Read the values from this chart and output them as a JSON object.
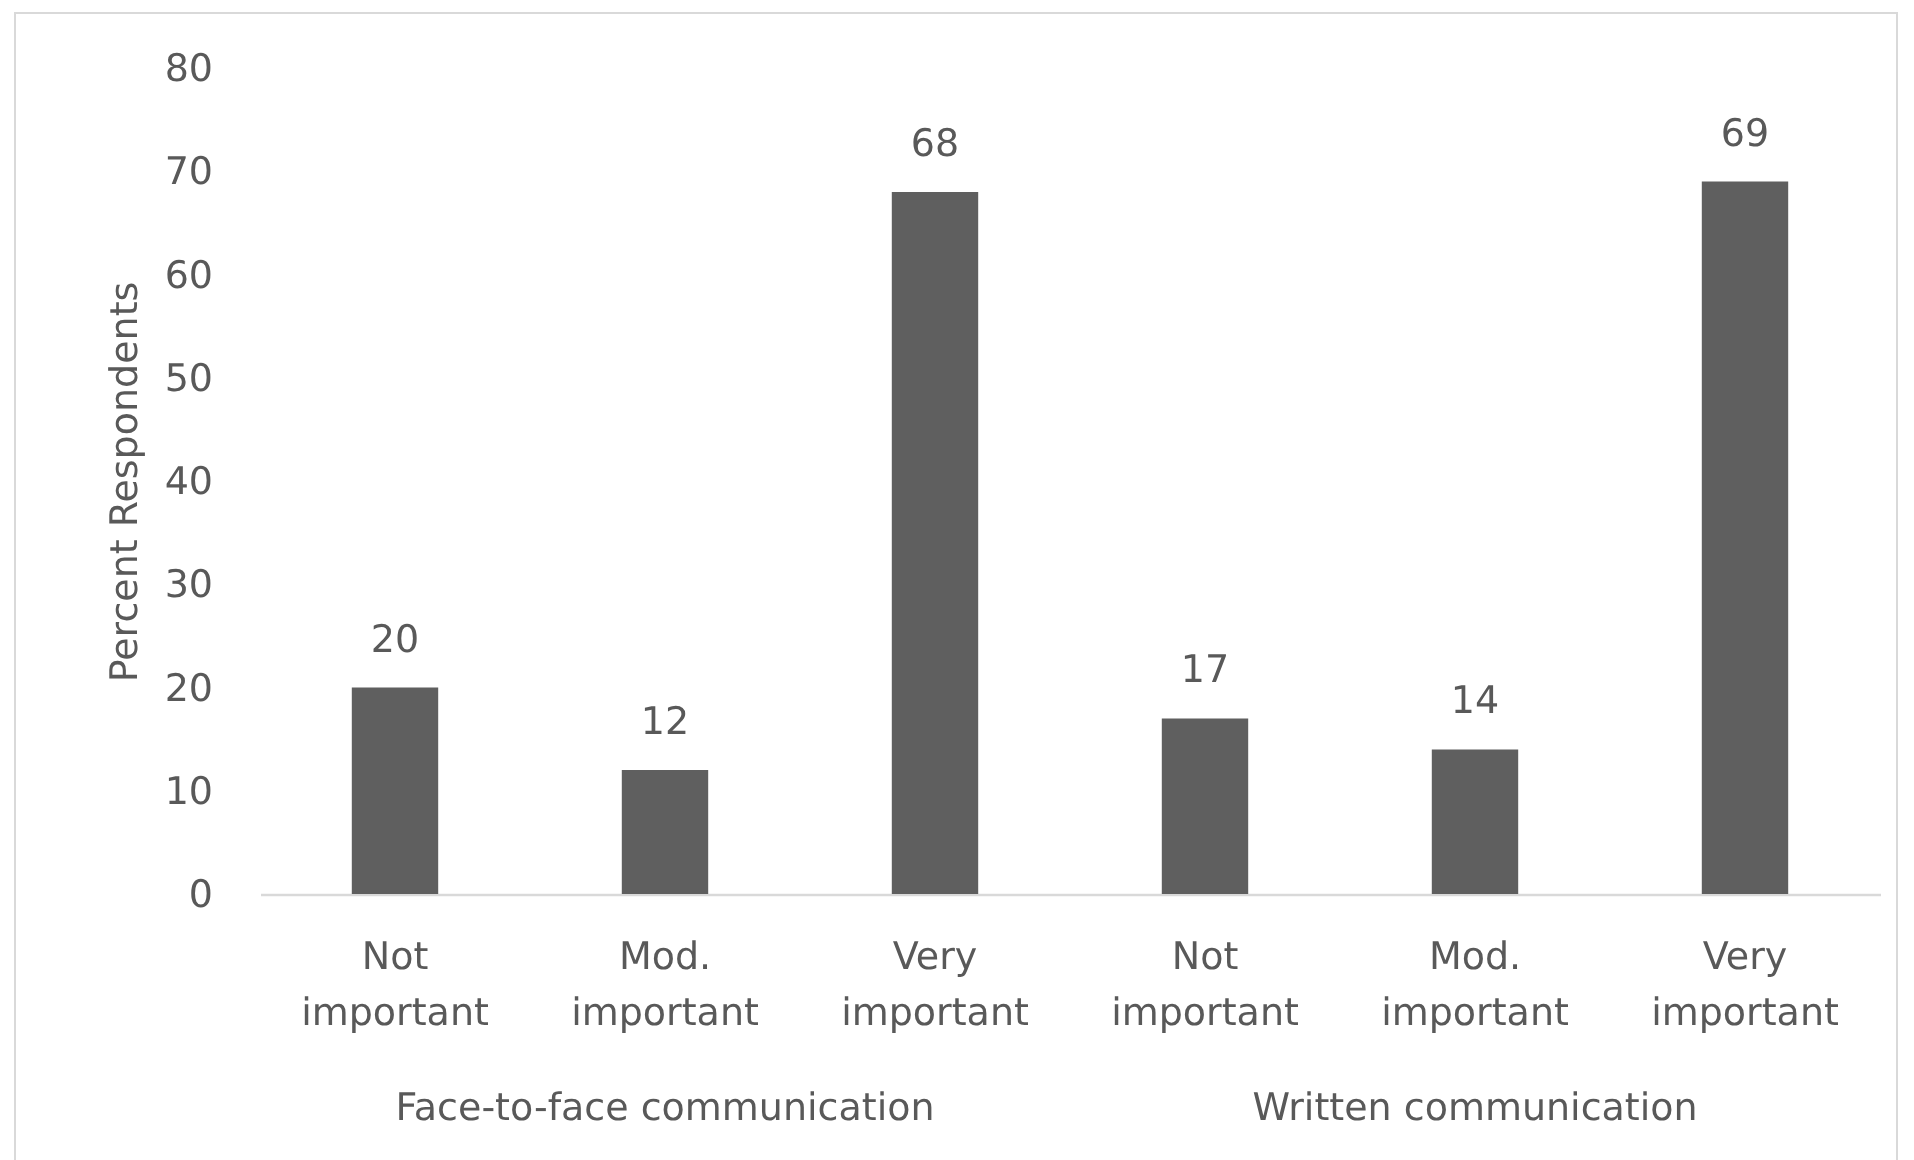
{
  "chart_data": {
    "type": "bar",
    "ylabel": "Percent Respondents",
    "categories": [
      "Not important",
      "Mod. important",
      "Very important",
      "Not important",
      "Mod. important",
      "Very important"
    ],
    "values": [
      20,
      12,
      68,
      17,
      14,
      69
    ],
    "color": "#5f5f5f",
    "ylim": [
      0,
      80
    ],
    "yticks": [
      0,
      10,
      20,
      30,
      40,
      50,
      60,
      70,
      80
    ],
    "data_labels": true,
    "annotations": [
      "Face-to-face communication",
      "Written communication"
    ]
  }
}
